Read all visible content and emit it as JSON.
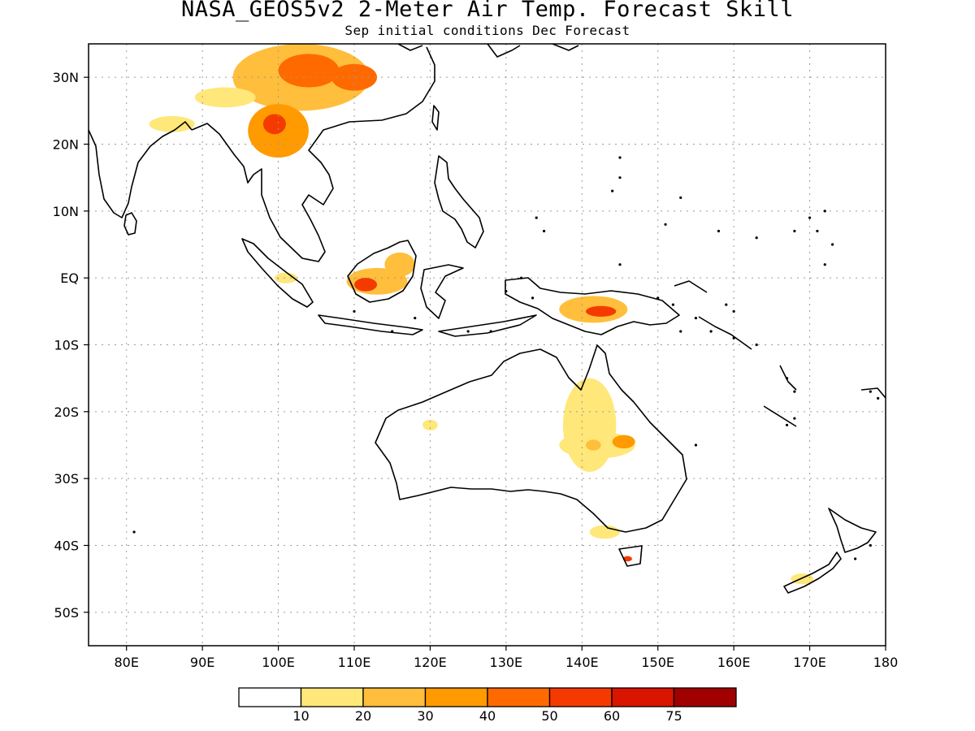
{
  "title": "NASA_GEOS5v2 2-Meter Air Temp. Forecast Skill",
  "subtitle": "Sep initial conditions  Dec Forecast",
  "map": {
    "lon_range": [
      75,
      180
    ],
    "lat_range": [
      -55,
      35
    ],
    "grid": true,
    "lon_ticks": [
      {
        "value": 80,
        "label": "80E"
      },
      {
        "value": 90,
        "label": "90E"
      },
      {
        "value": 100,
        "label": "100E"
      },
      {
        "value": 110,
        "label": "110E"
      },
      {
        "value": 120,
        "label": "120E"
      },
      {
        "value": 130,
        "label": "130E"
      },
      {
        "value": 140,
        "label": "140E"
      },
      {
        "value": 150,
        "label": "150E"
      },
      {
        "value": 160,
        "label": "160E"
      },
      {
        "value": 170,
        "label": "170E"
      },
      {
        "value": 180,
        "label": "180"
      }
    ],
    "lat_ticks": [
      {
        "value": 30,
        "label": "30N"
      },
      {
        "value": 20,
        "label": "20N"
      },
      {
        "value": 10,
        "label": "10N"
      },
      {
        "value": 0,
        "label": "EQ"
      },
      {
        "value": -10,
        "label": "10S"
      },
      {
        "value": -20,
        "label": "20S"
      },
      {
        "value": -30,
        "label": "30S"
      },
      {
        "value": -40,
        "label": "40S"
      },
      {
        "value": -50,
        "label": "50S"
      }
    ]
  },
  "colorbar": {
    "colors": [
      "#ffffff",
      "#ffe77a",
      "#ffbe3b",
      "#ff9a00",
      "#ff6a00",
      "#f53a00",
      "#d91500",
      "#a00000"
    ],
    "labels": [
      "10",
      "20",
      "30",
      "40",
      "50",
      "60",
      "75"
    ]
  },
  "skill_regions": [
    {
      "lon": 103,
      "lat": 30,
      "rx": 9,
      "ry": 5,
      "level": 2
    },
    {
      "lon": 104,
      "lat": 31,
      "rx": 4,
      "ry": 2.5,
      "level": 4
    },
    {
      "lon": 110,
      "lat": 30,
      "rx": 3,
      "ry": 2,
      "level": 4
    },
    {
      "lon": 100,
      "lat": 22,
      "rx": 4,
      "ry": 4,
      "level": 3
    },
    {
      "lon": 99.5,
      "lat": 23,
      "rx": 1.5,
      "ry": 1.5,
      "level": 5
    },
    {
      "lon": 93,
      "lat": 27,
      "rx": 4,
      "ry": 1.5,
      "level": 1
    },
    {
      "lon": 86,
      "lat": 23,
      "rx": 3,
      "ry": 1.2,
      "level": 1
    },
    {
      "lon": 113,
      "lat": -0.5,
      "rx": 4,
      "ry": 2,
      "level": 2
    },
    {
      "lon": 111.5,
      "lat": -1,
      "rx": 1.5,
      "ry": 1,
      "level": 5
    },
    {
      "lon": 116,
      "lat": 2,
      "rx": 2,
      "ry": 1.8,
      "level": 2
    },
    {
      "lon": 101,
      "lat": 0,
      "rx": 1.5,
      "ry": 0.8,
      "level": 1
    },
    {
      "lon": 141.5,
      "lat": -4.7,
      "rx": 4.5,
      "ry": 2,
      "level": 2
    },
    {
      "lon": 142.5,
      "lat": -5,
      "rx": 2,
      "ry": 0.8,
      "level": 5
    },
    {
      "lon": 141,
      "lat": -22,
      "rx": 3.5,
      "ry": 7,
      "level": 1
    },
    {
      "lon": 142,
      "lat": -25,
      "rx": 5,
      "ry": 2,
      "level": 1
    },
    {
      "lon": 145.5,
      "lat": -24.5,
      "rx": 1.5,
      "ry": 1,
      "level": 3
    },
    {
      "lon": 141.5,
      "lat": -25,
      "rx": 1,
      "ry": 0.8,
      "level": 2
    },
    {
      "lon": 143,
      "lat": -38,
      "rx": 2,
      "ry": 1,
      "level": 1
    },
    {
      "lon": 146,
      "lat": -42,
      "rx": 0.6,
      "ry": 0.4,
      "level": 5
    },
    {
      "lon": 169,
      "lat": -45,
      "rx": 1.5,
      "ry": 0.8,
      "level": 1
    },
    {
      "lon": 120,
      "lat": -22,
      "rx": 1,
      "ry": 0.8,
      "level": 1
    }
  ]
}
